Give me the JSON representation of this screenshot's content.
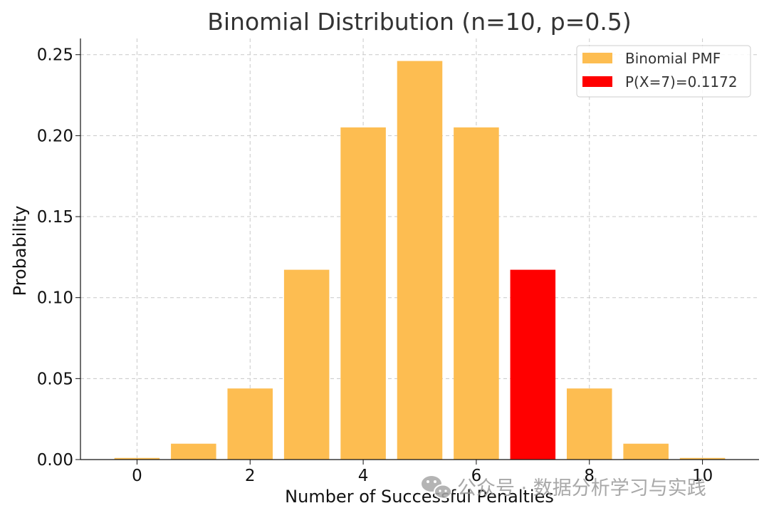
{
  "chart_data": {
    "type": "bar",
    "title": "Binomial Distribution (n=10, p=0.5)",
    "xlabel": "Number of Successful Penalties",
    "ylabel": "Probability",
    "x": [
      0,
      1,
      2,
      3,
      4,
      5,
      6,
      7,
      8,
      9,
      10
    ],
    "values": [
      0.001,
      0.0098,
      0.0439,
      0.1172,
      0.2051,
      0.2461,
      0.2051,
      0.1172,
      0.0439,
      0.0098,
      0.001
    ],
    "highlight_index": 7,
    "xlim": [
      -1,
      11
    ],
    "ylim": [
      0,
      0.26
    ],
    "xticks": [
      "0",
      "2",
      "4",
      "6",
      "8",
      "10"
    ],
    "yticks": [
      "0.00",
      "0.05",
      "0.10",
      "0.15",
      "0.20",
      "0.25"
    ],
    "grid": true,
    "legend_position": "top-right",
    "series": [
      {
        "name": "Binomial PMF",
        "color": "#fdbd51"
      },
      {
        "name": "P(X=7)=0.1172",
        "color": "#ff0000"
      }
    ]
  },
  "watermark": {
    "icon": "wechat-icon",
    "text": "公众号 · 数据分析学习与实践"
  }
}
